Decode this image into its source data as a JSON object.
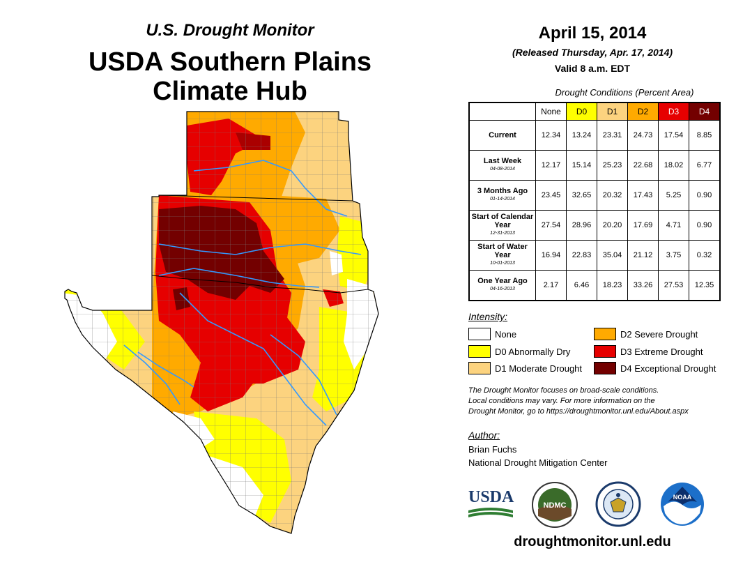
{
  "header": {
    "subtitle": "U.S. Drought Monitor",
    "title_line1": "USDA Southern Plains",
    "title_line2": "Climate Hub"
  },
  "date": {
    "main": "April 15, 2014",
    "released": "(Released Thursday, Apr. 17, 2014)",
    "valid": "Valid 8 a.m. EDT"
  },
  "conditions": {
    "title": "Drought Conditions (Percent Area)",
    "columns": [
      {
        "label": "None",
        "color": "#ffffff",
        "text_color": "#000000"
      },
      {
        "label": "D0",
        "color": "#ffff00",
        "text_color": "#000000"
      },
      {
        "label": "D1",
        "color": "#fcd37f",
        "text_color": "#000000"
      },
      {
        "label": "D2",
        "color": "#ffaa00",
        "text_color": "#000000"
      },
      {
        "label": "D3",
        "color": "#e60000",
        "text_color": "#ffffff"
      },
      {
        "label": "D4",
        "color": "#730000",
        "text_color": "#ffffff"
      }
    ],
    "rows": [
      {
        "label": "Current",
        "date": "",
        "values": [
          "12.34",
          "13.24",
          "23.31",
          "24.73",
          "17.54",
          "8.85"
        ]
      },
      {
        "label": "Last Week",
        "date": "04-08-2014",
        "values": [
          "12.17",
          "15.14",
          "25.23",
          "22.68",
          "18.02",
          "6.77"
        ]
      },
      {
        "label": "3 Months Ago",
        "date": "01-14-2014",
        "values": [
          "23.45",
          "32.65",
          "20.32",
          "17.43",
          "5.25",
          "0.90"
        ]
      },
      {
        "label": "Start of Calendar Year",
        "date": "12-31-2013",
        "values": [
          "27.54",
          "28.96",
          "20.20",
          "17.69",
          "4.71",
          "0.90"
        ]
      },
      {
        "label": "Start of Water Year",
        "date": "10-01-2013",
        "values": [
          "16.94",
          "22.83",
          "35.04",
          "21.12",
          "3.75",
          "0.32"
        ]
      },
      {
        "label": "One Year Ago",
        "date": "04-16-2013",
        "values": [
          "2.17",
          "6.46",
          "18.23",
          "33.26",
          "27.53",
          "12.35"
        ]
      }
    ]
  },
  "legend": {
    "title": "Intensity:",
    "items": [
      {
        "label": "None",
        "color": "#ffffff"
      },
      {
        "label": "D0 Abnormally Dry",
        "color": "#ffff00"
      },
      {
        "label": "D1 Moderate Drought",
        "color": "#fcd37f"
      },
      {
        "label": "D2 Severe Drought",
        "color": "#ffaa00"
      },
      {
        "label": "D3 Extreme Drought",
        "color": "#e60000"
      },
      {
        "label": "D4 Exceptional Drought",
        "color": "#730000"
      }
    ]
  },
  "note": {
    "line1": "The Drought Monitor focuses on broad-scale conditions.",
    "line2": "Local conditions may vary. For more information on the",
    "line3": "Drought Monitor, go to https://droughtmonitor.unl.edu/About.aspx"
  },
  "author": {
    "title": "Author:",
    "name": "Brian Fuchs",
    "org": "National Drought Mitigation Center"
  },
  "logos": {
    "usda": "USDA",
    "ndmc": "NDMC",
    "noaa": "NOAA"
  },
  "footer": {
    "url": "droughtmonitor.unl.edu"
  },
  "colors": {
    "river": "#3399ff",
    "county_line": "#777777"
  }
}
